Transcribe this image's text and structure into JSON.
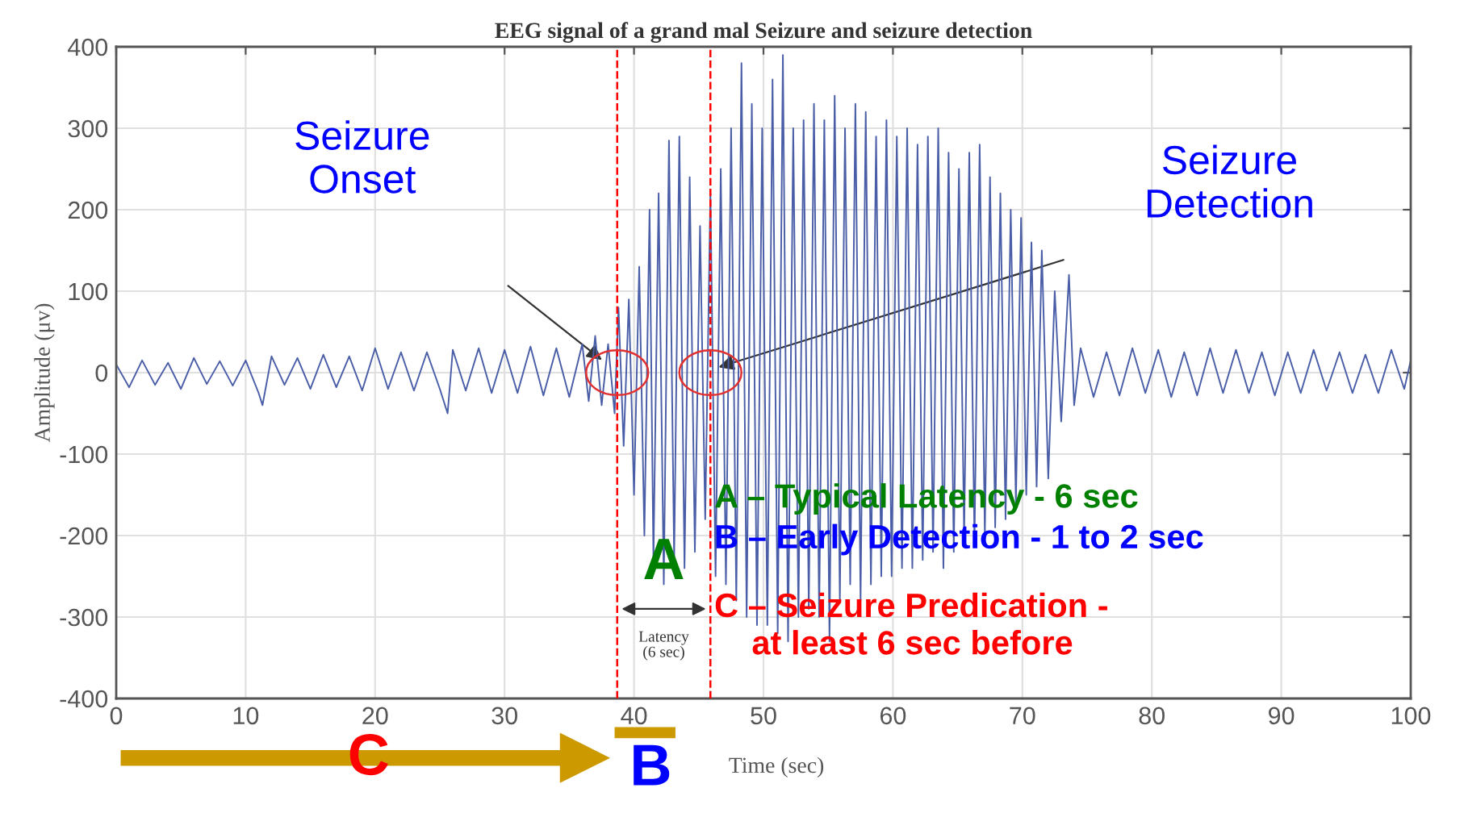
{
  "chart_data": {
    "type": "line",
    "title": "EEG signal of a grand mal Seizure and seizure detection",
    "xlabel": "Time (sec)",
    "ylabel": "Amplitude (μv)",
    "xlim": [
      0,
      100
    ],
    "ylim": [
      -400,
      400
    ],
    "xticks": [
      0,
      10,
      20,
      30,
      40,
      50,
      60,
      70,
      80,
      90,
      100
    ],
    "yticks": [
      -400,
      -300,
      -200,
      -100,
      0,
      100,
      200,
      300,
      400
    ],
    "grid": true,
    "marker": "none",
    "line_style": "solid",
    "series": [
      {
        "color": "#4a5ea8",
        "x": [
          0,
          1,
          2,
          3,
          4,
          5,
          6,
          7,
          8,
          9,
          10,
          11,
          11.3,
          12,
          13,
          14,
          15,
          16,
          17,
          18,
          19,
          20,
          21,
          22,
          23,
          24,
          25,
          25.6,
          26,
          27,
          28,
          29,
          30,
          31,
          32,
          33,
          34,
          35,
          36,
          36.5,
          37,
          37.5,
          38,
          38.5,
          38.8,
          39.2,
          39.6,
          40,
          40.4,
          40.8,
          41.2,
          41.5,
          41.9,
          42.3,
          42.7,
          43.1,
          43.5,
          43.9,
          44.3,
          44.7,
          45.1,
          45.5,
          45.9,
          46.3,
          46.7,
          47.1,
          47.5,
          47.9,
          48.3,
          48.7,
          49.1,
          49.5,
          49.9,
          50.3,
          50.7,
          51.1,
          51.5,
          51.9,
          52.3,
          52.7,
          53.1,
          53.5,
          53.9,
          54.3,
          54.7,
          55.1,
          55.5,
          55.9,
          56.3,
          56.7,
          57.1,
          57.5,
          57.9,
          58.3,
          58.7,
          59.1,
          59.5,
          59.9,
          60.3,
          60.7,
          61.1,
          61.5,
          61.9,
          62.3,
          62.7,
          63.1,
          63.5,
          63.9,
          64.3,
          64.7,
          65.1,
          65.5,
          65.9,
          66.3,
          66.7,
          67.1,
          67.5,
          67.9,
          68.3,
          68.7,
          69.1,
          69.5,
          69.9,
          70.3,
          70.7,
          71.1,
          71.5,
          72,
          72.5,
          73,
          73.6,
          74,
          74.5,
          75.5,
          76.5,
          77.5,
          78.5,
          79.5,
          80.5,
          81.5,
          82.5,
          83.5,
          84.5,
          85.5,
          86.5,
          87.5,
          88.5,
          89.5,
          90.5,
          91.5,
          92.5,
          93.5,
          94.5,
          95.5,
          96.5,
          97.5,
          98.5,
          99.5,
          100
        ],
        "values": [
          10,
          -18,
          15,
          -15,
          12,
          -20,
          18,
          -14,
          14,
          -16,
          15,
          -25,
          -40,
          20,
          -15,
          18,
          -20,
          22,
          -18,
          20,
          -22,
          30,
          -20,
          25,
          -22,
          25,
          -20,
          -50,
          28,
          -22,
          30,
          -25,
          28,
          -25,
          32,
          -28,
          30,
          -30,
          35,
          -35,
          45,
          -40,
          35,
          -50,
          80,
          -90,
          90,
          -150,
          130,
          -200,
          200,
          -230,
          220,
          -260,
          285,
          -230,
          290,
          -240,
          240,
          -220,
          180,
          -180,
          220,
          -250,
          250,
          -260,
          300,
          -280,
          380,
          -300,
          330,
          -310,
          300,
          -310,
          360,
          -320,
          390,
          -330,
          300,
          -300,
          310,
          -290,
          330,
          -300,
          310,
          -330,
          340,
          -280,
          300,
          -260,
          330,
          -280,
          320,
          -260,
          290,
          -250,
          310,
          -250,
          290,
          -240,
          300,
          -240,
          280,
          -230,
          290,
          -220,
          300,
          -240,
          270,
          -220,
          250,
          -200,
          270,
          -210,
          280,
          -200,
          240,
          -190,
          220,
          -180,
          200,
          -160,
          190,
          -150,
          160,
          -140,
          150,
          -130,
          100,
          -60,
          120,
          -40,
          30,
          -30,
          25,
          -28,
          30,
          -25,
          28,
          -30,
          25,
          -28,
          30,
          -25,
          28,
          -25,
          25,
          -28,
          25,
          -25,
          28,
          -22,
          25,
          -25,
          22,
          -25,
          28,
          -20,
          15
        ]
      }
    ],
    "ref_lines": [
      {
        "axis": "x",
        "value": 38.7,
        "color": "#ff0000",
        "line_style": "dashed"
      },
      {
        "axis": "x",
        "value": 45.9,
        "color": "#ff0000",
        "line_style": "dashed"
      }
    ],
    "annotations": [
      "Seizure\nOnset",
      "Seizure\nDetection",
      "A",
      "Latency\n(6 sec)",
      "A – Typical Latency - 6 sec",
      "B – Early Detection - 1 to 2 sec",
      "C – Seizure Predication -\n    at least 6 sec before",
      "C",
      "B"
    ]
  }
}
